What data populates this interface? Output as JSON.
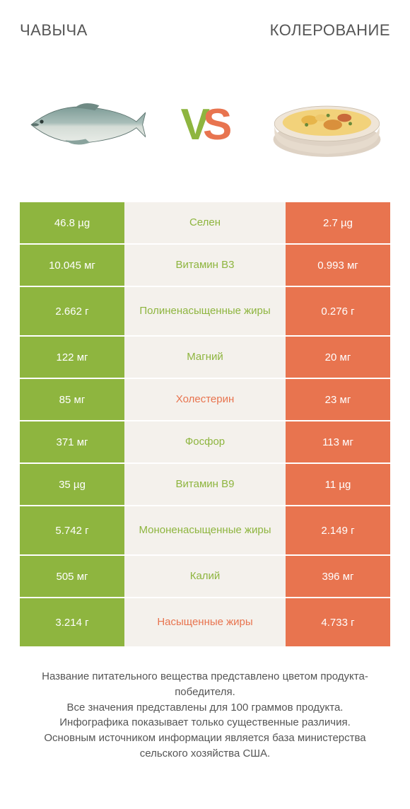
{
  "colors": {
    "left": "#8eb53f",
    "right": "#e8744f",
    "mid_bg": "#f4f1ec",
    "bg": "#ffffff",
    "text": "#555555",
    "vs_left": "#8eb53f",
    "vs_right": "#e8744f"
  },
  "header": {
    "left_title": "ЧАВЫЧА",
    "right_title": "КОЛЕРОВАНИЕ"
  },
  "vs": {
    "v": "V",
    "s": "S"
  },
  "rows": [
    {
      "left": "46.8 µg",
      "label": "Селен",
      "right": "2.7 µg",
      "winner": "left",
      "tall": false
    },
    {
      "left": "10.045 мг",
      "label": "Витамин B3",
      "right": "0.993 мг",
      "winner": "left",
      "tall": false
    },
    {
      "left": "2.662 г",
      "label": "Полиненасыщенные жиры",
      "right": "0.276 г",
      "winner": "left",
      "tall": true
    },
    {
      "left": "122 мг",
      "label": "Магний",
      "right": "20 мг",
      "winner": "left",
      "tall": false
    },
    {
      "left": "85 мг",
      "label": "Холестерин",
      "right": "23 мг",
      "winner": "right",
      "tall": false
    },
    {
      "left": "371 мг",
      "label": "Фосфор",
      "right": "113 мг",
      "winner": "left",
      "tall": false
    },
    {
      "left": "35 µg",
      "label": "Витамин B9",
      "right": "11 µg",
      "winner": "left",
      "tall": false
    },
    {
      "left": "5.742 г",
      "label": "Мононенасыщенные жиры",
      "right": "2.149 г",
      "winner": "left",
      "tall": true
    },
    {
      "left": "505 мг",
      "label": "Калий",
      "right": "396 мг",
      "winner": "left",
      "tall": false
    },
    {
      "left": "3.214 г",
      "label": "Насыщенные жиры",
      "right": "4.733 г",
      "winner": "right",
      "tall": true
    }
  ],
  "footnote": "Название питательного вещества представлено цветом продукта-победителя.\nВсе значения представлены для 100 граммов продукта.\nИнфографика показывает только существенные различия.\nОсновным источником информации является база министерства сельского хозяйства США."
}
